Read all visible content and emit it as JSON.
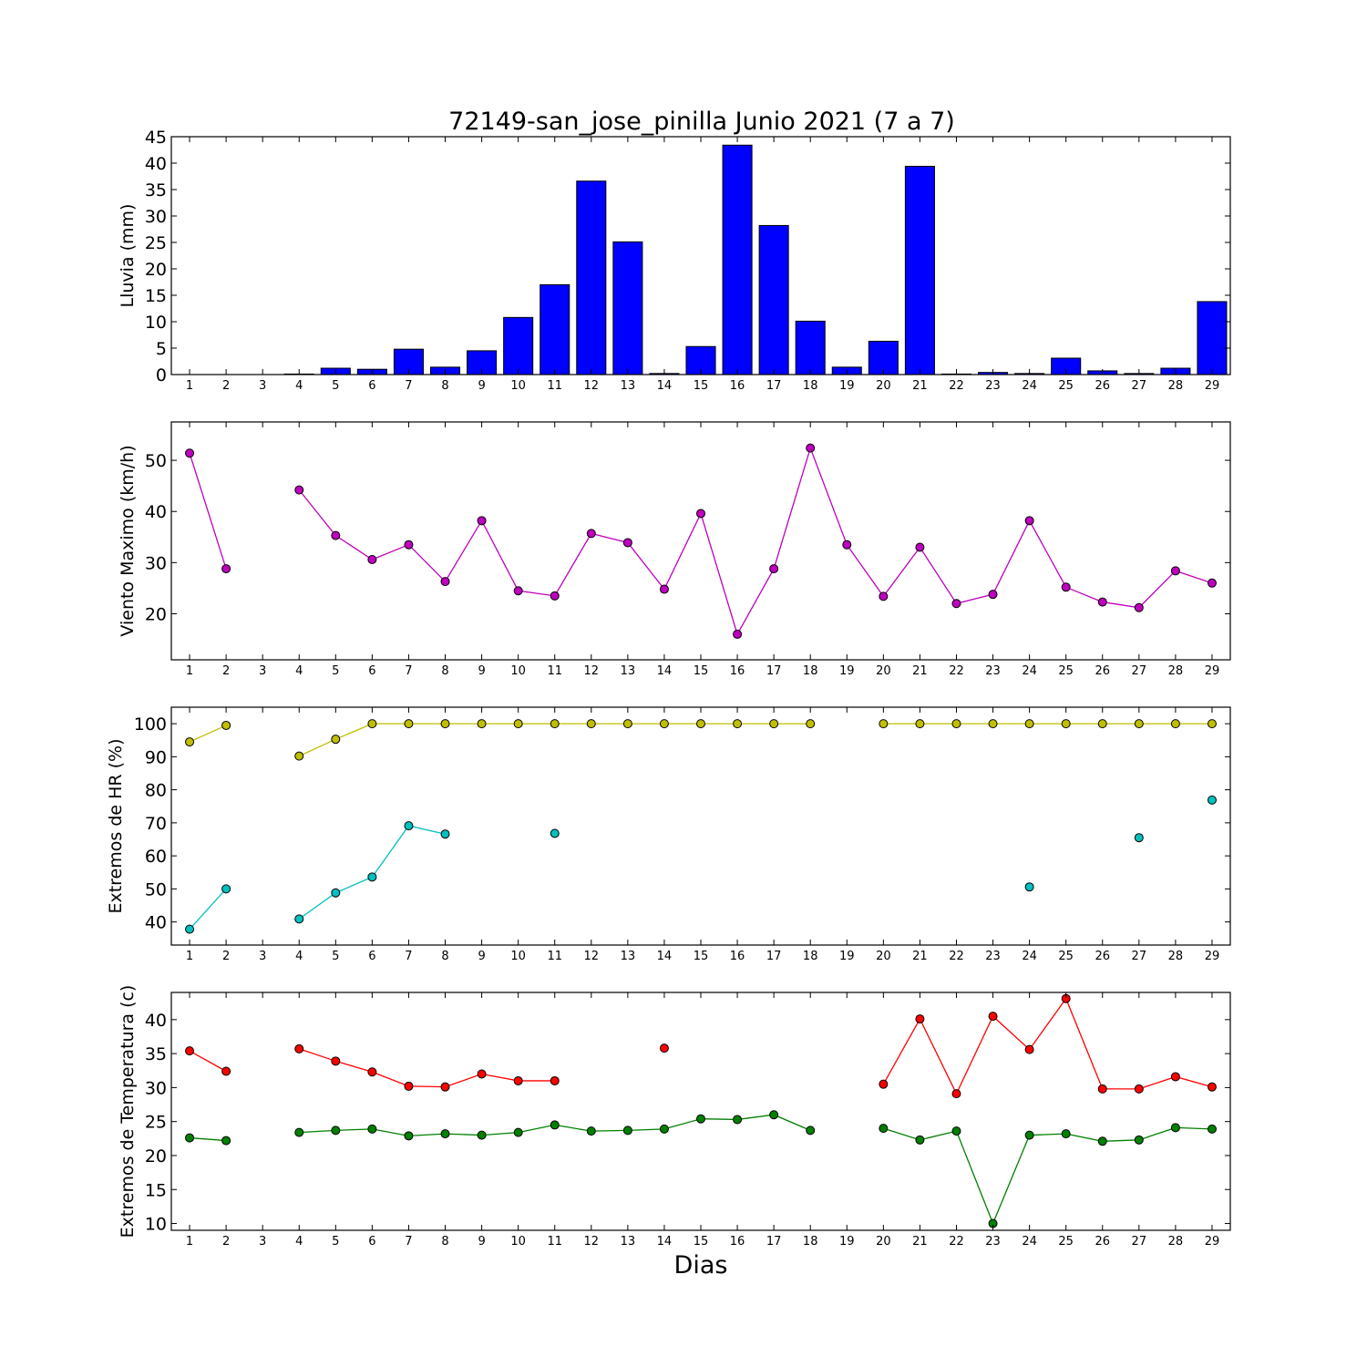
{
  "title": "72149-san_jose_pinilla Junio 2021  (7 a 7)",
  "xlabel": "Dias",
  "chart_data": [
    {
      "type": "bar",
      "ylabel": "Lluvia (mm)",
      "ylim": [
        0,
        45
      ],
      "yticks": [
        0,
        5,
        10,
        15,
        20,
        25,
        30,
        35,
        40,
        45
      ],
      "categories": [
        1,
        2,
        3,
        4,
        5,
        6,
        7,
        8,
        9,
        10,
        11,
        12,
        13,
        14,
        15,
        16,
        17,
        18,
        19,
        20,
        21,
        22,
        23,
        24,
        25,
        26,
        27,
        28,
        29
      ],
      "series": [
        {
          "color": "#0000ff",
          "values": [
            0,
            0,
            0,
            0.1,
            1.2,
            1.0,
            4.8,
            1.4,
            4.5,
            10.8,
            17.0,
            36.6,
            25.1,
            0.2,
            5.3,
            43.4,
            28.2,
            10.1,
            1.4,
            6.3,
            39.4,
            0.1,
            0.4,
            0.2,
            3.1,
            0.7,
            0.2,
            1.2,
            13.8
          ]
        }
      ]
    },
    {
      "type": "line",
      "ylabel": "Viento Maximo (km/h)",
      "ylim": [
        11,
        57.5
      ],
      "yticks": [
        20,
        30,
        40,
        50
      ],
      "x": [
        1,
        2,
        3,
        4,
        5,
        6,
        7,
        8,
        9,
        10,
        11,
        12,
        13,
        14,
        15,
        16,
        17,
        18,
        19,
        20,
        21,
        22,
        23,
        24,
        25,
        26,
        27,
        28,
        29
      ],
      "series": [
        {
          "color": "#bf00bf",
          "values": [
            51.4,
            28.8,
            null,
            44.2,
            35.3,
            30.6,
            33.5,
            26.3,
            38.2,
            24.5,
            23.5,
            35.7,
            33.9,
            24.8,
            39.6,
            16.0,
            28.8,
            52.4,
            33.5,
            23.4,
            33.0,
            22.0,
            23.8,
            38.2,
            25.2,
            22.3,
            21.2,
            28.4,
            26.0
          ]
        }
      ]
    },
    {
      "type": "line",
      "ylabel": "Extremos de HR (%)",
      "ylim": [
        33,
        105
      ],
      "yticks": [
        40,
        50,
        60,
        70,
        80,
        90,
        100
      ],
      "x": [
        1,
        2,
        3,
        4,
        5,
        6,
        7,
        8,
        9,
        10,
        11,
        12,
        13,
        14,
        15,
        16,
        17,
        18,
        19,
        20,
        21,
        22,
        23,
        24,
        25,
        26,
        27,
        28,
        29
      ],
      "series": [
        {
          "color": "#bfbf00",
          "values": [
            94.5,
            99.5,
            null,
            90.2,
            95.3,
            100,
            100,
            100,
            100,
            100,
            100,
            100,
            100,
            100,
            100,
            100,
            100,
            100,
            null,
            100,
            100,
            100,
            100,
            100,
            100,
            100,
            100,
            100,
            100
          ]
        },
        {
          "color": "#00bfbf",
          "values": [
            37.8,
            50.0,
            null,
            40.9,
            48.8,
            53.6,
            69.1,
            66.6,
            null,
            null,
            66.8,
            null,
            null,
            null,
            null,
            null,
            null,
            null,
            null,
            null,
            null,
            null,
            null,
            50.6,
            null,
            null,
            65.5,
            null,
            76.9
          ]
        }
      ]
    },
    {
      "type": "line",
      "ylabel": "Extremos de Temperatura (c)",
      "ylim": [
        9,
        44
      ],
      "yticks": [
        10,
        15,
        20,
        25,
        30,
        35,
        40
      ],
      "x": [
        1,
        2,
        3,
        4,
        5,
        6,
        7,
        8,
        9,
        10,
        11,
        12,
        13,
        14,
        15,
        16,
        17,
        18,
        19,
        20,
        21,
        22,
        23,
        24,
        25,
        26,
        27,
        28,
        29
      ],
      "series": [
        {
          "color": "#ff0000",
          "values": [
            35.4,
            32.4,
            null,
            35.7,
            33.9,
            32.3,
            30.2,
            30.1,
            32.0,
            31.0,
            31.0,
            null,
            null,
            35.8,
            null,
            null,
            null,
            null,
            null,
            30.5,
            40.1,
            29.1,
            40.5,
            35.6,
            43.1,
            29.8,
            29.8,
            31.6,
            30.1
          ]
        },
        {
          "color": "#008000",
          "values": [
            22.6,
            22.2,
            null,
            23.4,
            23.7,
            23.9,
            22.9,
            23.2,
            23.0,
            23.4,
            24.5,
            23.6,
            23.7,
            23.9,
            25.4,
            25.3,
            26.0,
            23.7,
            null,
            24.0,
            22.3,
            23.6,
            10.0,
            23.0,
            23.2,
            22.1,
            22.3,
            24.1,
            23.9
          ]
        }
      ]
    }
  ]
}
